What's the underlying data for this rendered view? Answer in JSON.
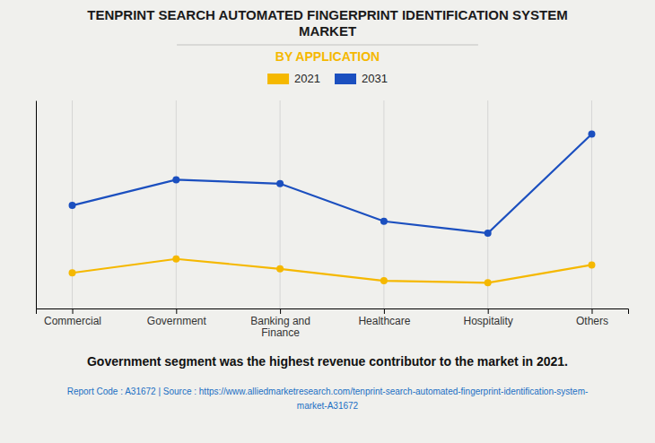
{
  "chart_data": {
    "type": "line",
    "title": "TENPRINT SEARCH AUTOMATED FINGERPRINT IDENTIFICATION SYSTEM\nMARKET",
    "subtitle": "BY APPLICATION",
    "categories": [
      "Commercial",
      "Government",
      "Banking and\nFinance",
      "Healthcare",
      "Hospitality",
      "Others"
    ],
    "series": [
      {
        "name": "2021",
        "color": "#F5B800",
        "values": [
          0.18,
          0.25,
          0.2,
          0.14,
          0.13,
          0.22
        ]
      },
      {
        "name": "2031",
        "color": "#1B4FBF",
        "values": [
          0.52,
          0.65,
          0.63,
          0.44,
          0.38,
          0.88
        ]
      }
    ],
    "ylim": [
      0.0,
      1.05
    ],
    "yticks": [],
    "grid": true,
    "legend": "top",
    "marker": "circle",
    "tick_labels": "x",
    "annotations": [
      "Government segment was the highest revenue contributor to the market in 2021.",
      "Report Code : A31672  |  Source : https://www.alliedmarketresearch.com/tenprint-search-automated-fingerprint-identification-system-",
      "market-A31672"
    ]
  }
}
